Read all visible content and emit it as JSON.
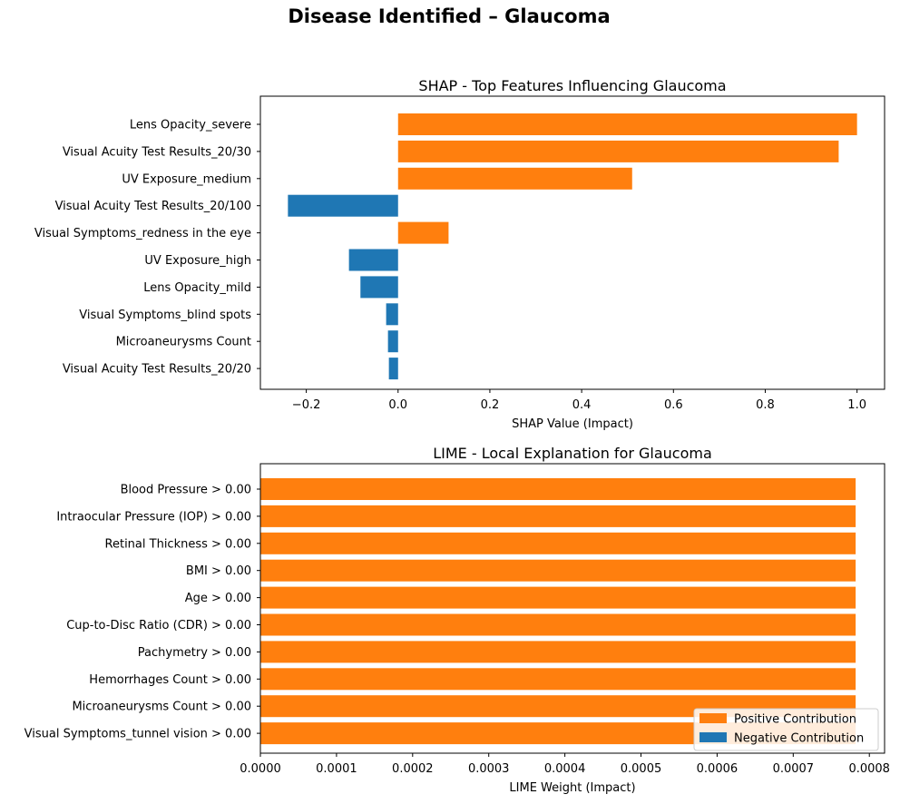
{
  "figure_title": "Disease Identified – Glaucoma",
  "colors": {
    "positive": "#ff7f0e",
    "negative": "#1f77b4"
  },
  "chart_data": [
    {
      "type": "bar",
      "orientation": "horizontal",
      "title": "SHAP - Top Features Influencing Glaucoma",
      "xlabel": "SHAP Value (Impact)",
      "ylabel": "",
      "xlim": [
        -0.3,
        1.06
      ],
      "xticks": [
        -0.2,
        0.0,
        0.2,
        0.4,
        0.6,
        0.8,
        1.0
      ],
      "xtick_labels": [
        "−0.2",
        "0.0",
        "0.2",
        "0.4",
        "0.6",
        "0.8",
        "1.0"
      ],
      "categories": [
        "Lens Opacity_severe",
        "Visual Acuity Test Results_20/30",
        "UV Exposure_medium",
        "Visual Acuity Test Results_20/100",
        "Visual Symptoms_redness in the eye",
        "UV Exposure_high",
        "Lens Opacity_mild",
        "Visual Symptoms_blind spots",
        "Microaneurysms Count",
        "Visual Acuity Test Results_20/20"
      ],
      "values": [
        1.0,
        0.96,
        0.51,
        -0.24,
        0.11,
        -0.107,
        -0.082,
        -0.026,
        -0.022,
        -0.02
      ],
      "grid": false,
      "legend": null
    },
    {
      "type": "bar",
      "orientation": "horizontal",
      "title": "LIME - Local Explanation for Glaucoma",
      "xlabel": "LIME Weight (Impact)",
      "ylabel": "",
      "xlim": [
        0,
        0.00082
      ],
      "xticks": [
        0,
        0.0001,
        0.0002,
        0.0003,
        0.0004,
        0.0005,
        0.0006,
        0.0007,
        0.0008
      ],
      "xtick_labels": [
        "0.0000",
        "0.0001",
        "0.0002",
        "0.0003",
        "0.0004",
        "0.0005",
        "0.0006",
        "0.0007",
        "0.0008"
      ],
      "categories": [
        "Blood Pressure > 0.00",
        "Intraocular Pressure (IOP) > 0.00",
        "Retinal Thickness > 0.00",
        "BMI > 0.00",
        "Age > 0.00",
        "Cup-to-Disc Ratio (CDR) > 0.00",
        "Pachymetry > 0.00",
        "Hemorrhages Count > 0.00",
        "Microaneurysms Count > 0.00",
        "Visual Symptoms_tunnel vision > 0.00"
      ],
      "values": [
        0.000782,
        0.000782,
        0.000782,
        0.000782,
        0.000782,
        0.000782,
        0.000782,
        0.000782,
        0.000782,
        0.000782
      ],
      "grid": false,
      "legend": {
        "position": "lower right",
        "entries": [
          {
            "label": "Positive Contribution",
            "color": "#ff7f0e"
          },
          {
            "label": "Negative Contribution",
            "color": "#1f77b4"
          }
        ]
      }
    }
  ]
}
